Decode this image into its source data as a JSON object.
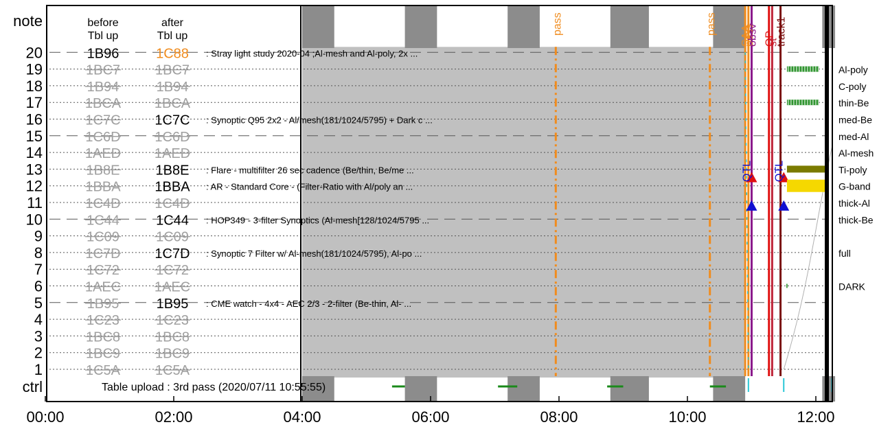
{
  "chart_data": {
    "type": "timeline",
    "title": "",
    "xlabel": "",
    "ylabel": "",
    "x_range_hours": [
      -0.5,
      12.4
    ],
    "x_ticks": [
      "00:00",
      "02:00",
      "04:00",
      "06:00",
      "08:00",
      "10:00",
      "12:00"
    ],
    "x_tick_hours": [
      0,
      2,
      4,
      6,
      8,
      10,
      12
    ],
    "y_top_label": "note",
    "y_bottom_label": "ctrl",
    "y_numbers": [
      20,
      19,
      18,
      17,
      16,
      15,
      14,
      13,
      12,
      11,
      10,
      9,
      8,
      7,
      6,
      5,
      4,
      3,
      2,
      1
    ],
    "before_header": [
      "before",
      "Tbl up"
    ],
    "after_header": [
      "after",
      "Tbl up"
    ],
    "rows": [
      {
        "n": 20,
        "before": "1B96",
        "after": "1C88",
        "before_state": "active",
        "after_state": "highlight",
        "note": ": Stray light study 2020-04 ;Al-mesh and Al-poly, 2x ...",
        "ctrl_label": "",
        "dash": "long"
      },
      {
        "n": 19,
        "before": "1BC7",
        "after": "1BC7",
        "before_state": "struck",
        "after_state": "struck",
        "note": "",
        "ctrl_label": "Al-poly",
        "dash": "dot"
      },
      {
        "n": 18,
        "before": "1B94",
        "after": "1B94",
        "before_state": "struck",
        "after_state": "struck",
        "note": "",
        "ctrl_label": "C-poly",
        "dash": "dot"
      },
      {
        "n": 17,
        "before": "1BCA",
        "after": "1BCA",
        "before_state": "struck",
        "after_state": "struck",
        "note": "",
        "ctrl_label": "thin-Be",
        "dash": "dot"
      },
      {
        "n": 16,
        "before": "1C7C",
        "after": "1C7C",
        "before_state": "struck",
        "after_state": "active",
        "note": ": Synoptic Q95 2x2 - Al/mesh(181/1024/5795) + Dark c ...",
        "ctrl_label": "med-Be",
        "dash": "dot"
      },
      {
        "n": 15,
        "before": "1C6D",
        "after": "1C6D",
        "before_state": "struck",
        "after_state": "struck",
        "note": "",
        "ctrl_label": "med-Al",
        "dash": "long"
      },
      {
        "n": 14,
        "before": "1AED",
        "after": "1AED",
        "before_state": "struck",
        "after_state": "struck",
        "note": "",
        "ctrl_label": "Al-mesh",
        "dash": "dot"
      },
      {
        "n": 13,
        "before": "1B8E",
        "after": "1B8E",
        "before_state": "struck",
        "after_state": "active",
        "note": ": Flare - multifilter 26 sec cadence (Be/thin, Be/me ...",
        "ctrl_label": "Ti-poly",
        "dash": "dot"
      },
      {
        "n": 12,
        "before": "1BBA",
        "after": "1BBA",
        "before_state": "struck",
        "after_state": "active",
        "note": ": AR - Standard Core - (Filter-Ratio with Al/poly an ...",
        "ctrl_label": "G-band",
        "dash": "dot"
      },
      {
        "n": 11,
        "before": "1C4D",
        "after": "1C4D",
        "before_state": "struck",
        "after_state": "struck",
        "note": "",
        "ctrl_label": "thick-Al",
        "dash": "dot"
      },
      {
        "n": 10,
        "before": "1C44",
        "after": "1C44",
        "before_state": "struck",
        "after_state": "active",
        "note": ": HOP349 - 3-filter Synoptics (Al-mesh[128/1024/5795 ...",
        "ctrl_label": "thick-Be",
        "dash": "long"
      },
      {
        "n": 9,
        "before": "1C09",
        "after": "1C09",
        "before_state": "struck",
        "after_state": "struck",
        "note": "",
        "ctrl_label": "",
        "dash": "dot"
      },
      {
        "n": 8,
        "before": "1C7D",
        "after": "1C7D",
        "before_state": "struck",
        "after_state": "active",
        "note": ": Synoptic 7 Filter w/ Al-mesh(181/1024/5795), Al-po ...",
        "ctrl_label": "full",
        "dash": "dot"
      },
      {
        "n": 7,
        "before": "1C72",
        "after": "1C72",
        "before_state": "struck",
        "after_state": "struck",
        "note": "",
        "ctrl_label": "",
        "dash": "dot"
      },
      {
        "n": 6,
        "before": "1AEC",
        "after": "1AEC",
        "before_state": "struck",
        "after_state": "struck",
        "note": "",
        "ctrl_label": "DARK",
        "dash": "dot"
      },
      {
        "n": 5,
        "before": "1B95",
        "after": "1B95",
        "before_state": "struck",
        "after_state": "active",
        "note": ": CME watch - 4x4 - AEC 2/3 - 2-filter (Be-thin, Al- ...",
        "ctrl_label": "",
        "dash": "long"
      },
      {
        "n": 4,
        "before": "1C23",
        "after": "1C23",
        "before_state": "struck",
        "after_state": "struck",
        "note": "",
        "ctrl_label": "",
        "dash": "dot"
      },
      {
        "n": 3,
        "before": "1BC8",
        "after": "1BC8",
        "before_state": "struck",
        "after_state": "struck",
        "note": "",
        "ctrl_label": "",
        "dash": "dot"
      },
      {
        "n": 2,
        "before": "1BC9",
        "after": "1BC9",
        "before_state": "struck",
        "after_state": "struck",
        "note": "",
        "ctrl_label": "",
        "dash": "dot"
      },
      {
        "n": 1,
        "before": "1C5A",
        "after": "1C5A",
        "before_state": "struck",
        "after_state": "struck",
        "note": "",
        "ctrl_label": "",
        "dash": "dot"
      }
    ],
    "upload_text": "Table upload : 3rd pass (2020/07/11 10:55:55)",
    "night_bands_hours": [
      [
        4.0,
        4.5
      ],
      [
        5.6,
        6.1
      ],
      [
        7.2,
        7.7
      ],
      [
        8.8,
        9.4
      ],
      [
        10.4,
        10.9
      ],
      [
        12.1,
        12.3
      ]
    ],
    "gray_region_hours": [
      4.0,
      10.9
    ],
    "pass_markers": [
      {
        "hour": 7.95,
        "label": "pass"
      },
      {
        "hour": 10.35,
        "label": "pass"
      }
    ],
    "event_lines": [
      {
        "hour": 10.9,
        "label": "SAA",
        "color": "#f08c1e"
      },
      {
        "hour": 10.95,
        "label": "pass",
        "color": "#f08c1e"
      },
      {
        "hour": 11.0,
        "label": "obsv",
        "color": "#8b1a8b"
      },
      {
        "hour": 11.27,
        "label": "OP",
        "color": "#e01010"
      },
      {
        "hour": 11.32,
        "label": "st",
        "color": "#c0283c"
      },
      {
        "hour": 11.45,
        "label": "track1",
        "color": "#7a0f0f"
      }
    ],
    "qt_labels": [
      {
        "hour": 11.0,
        "label": "QTL"
      },
      {
        "hour": 11.5,
        "label": "QTL"
      }
    ],
    "triangles": [
      {
        "hour": 11.0,
        "row": 12.5,
        "color": "#e01010"
      },
      {
        "hour": 11.0,
        "row": 10.8,
        "color": "#1010d0"
      },
      {
        "hour": 11.5,
        "row": 12.5,
        "color": "#e01010"
      },
      {
        "hour": 11.5,
        "row": 10.8,
        "color": "#1010d0"
      }
    ],
    "filter_bars": [
      {
        "row": 19,
        "start": 11.55,
        "end": 12.05,
        "color": "#1a8a1a",
        "style": "hatched"
      },
      {
        "row": 17,
        "start": 11.55,
        "end": 12.05,
        "color": "#1a8a1a",
        "style": "hatched"
      },
      {
        "row": 13,
        "start": 11.55,
        "end": 12.2,
        "color": "#7b7b00",
        "style": "solid"
      },
      {
        "row": 12,
        "start": 11.55,
        "end": 12.2,
        "color": "#f5d800",
        "style": "solid"
      }
    ],
    "ctrl_ticks_green": [
      5.4,
      5.6,
      7.05,
      7.35,
      8.75,
      9.0,
      10.35,
      10.6
    ],
    "ctrl_ticks_cyan": [
      10.95,
      11.5,
      12.25
    ],
    "colors": {
      "gray_region": "#c0c0c0",
      "night_band": "#8c8c8c",
      "pass_line": "#f08c1e",
      "highlight_id": "#f08c1e",
      "struck_id": "#a0a0a0",
      "active_id": "#000000"
    }
  }
}
